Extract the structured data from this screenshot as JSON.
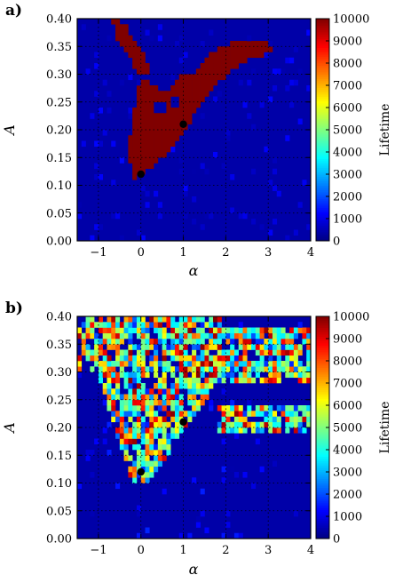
{
  "chart_data": [
    {
      "type": "heatmap",
      "panel_label": "a)",
      "xlabel": "α",
      "ylabel": "A",
      "xlim": [
        -1.5,
        4
      ],
      "ylim": [
        0,
        0.4
      ],
      "x_ticks": [
        "−1",
        "0",
        "1",
        "2",
        "3",
        "4"
      ],
      "x_tick_values": [
        -1,
        0,
        1,
        2,
        3,
        4
      ],
      "y_ticks": [
        "0.00",
        "0.05",
        "0.10",
        "0.15",
        "0.20",
        "0.25",
        "0.30",
        "0.35",
        "0.40"
      ],
      "y_tick_values": [
        0,
        0.05,
        0.1,
        0.15,
        0.2,
        0.25,
        0.3,
        0.35,
        0.4
      ],
      "grid": true,
      "colorbar": {
        "label": "Lifetime",
        "range": [
          0,
          10000
        ],
        "ticks": [
          "0",
          "1000",
          "2000",
          "3000",
          "4000",
          "5000",
          "6000",
          "7000",
          "8000",
          "9000",
          "10000"
        ],
        "tick_values": [
          0,
          1000,
          2000,
          3000,
          4000,
          5000,
          6000,
          7000,
          8000,
          9000,
          10000
        ]
      },
      "background_value": 400,
      "region": {
        "value": 10000,
        "description_points": [
          [
            -0.15,
            0.115
          ],
          [
            0.05,
            0.12
          ],
          [
            0.5,
            0.15
          ],
          [
            0.95,
            0.185
          ],
          [
            1.35,
            0.24
          ],
          [
            1.8,
            0.285
          ],
          [
            2.4,
            0.32
          ],
          [
            3.0,
            0.34
          ],
          [
            3.2,
            0.35
          ],
          [
            2.8,
            0.362
          ],
          [
            2.2,
            0.36
          ],
          [
            1.9,
            0.35
          ],
          [
            1.55,
            0.33
          ],
          [
            1.2,
            0.3
          ],
          [
            0.9,
            0.295
          ],
          [
            0.6,
            0.27
          ],
          [
            0.3,
            0.28
          ],
          [
            -0.05,
            0.305
          ],
          [
            -0.35,
            0.335
          ],
          [
            -0.6,
            0.37
          ],
          [
            -0.7,
            0.4
          ],
          [
            -0.5,
            0.4
          ],
          [
            -0.2,
            0.37
          ],
          [
            0.05,
            0.34
          ],
          [
            0.2,
            0.31
          ],
          [
            -0.05,
            0.28
          ],
          [
            -0.15,
            0.24
          ],
          [
            -0.25,
            0.19
          ],
          [
            -0.3,
            0.15
          ]
        ],
        "holes": [
          [
            [
              0.35,
              0.23
            ],
            [
              0.6,
              0.23
            ],
            [
              0.6,
              0.25
            ],
            [
              0.35,
              0.25
            ]
          ],
          [
            [
              0.7,
              0.245
            ],
            [
              0.9,
              0.245
            ],
            [
              0.9,
              0.265
            ],
            [
              0.7,
              0.265
            ]
          ]
        ]
      },
      "markers": [
        {
          "x": 0,
          "y": 0.12
        },
        {
          "x": 1,
          "y": 0.21
        }
      ]
    },
    {
      "type": "heatmap",
      "panel_label": "b)",
      "xlabel": "α",
      "ylabel": "A",
      "xlim": [
        -1.5,
        4
      ],
      "ylim": [
        0,
        0.4
      ],
      "x_ticks": [
        "−1",
        "0",
        "1",
        "2",
        "3",
        "4"
      ],
      "x_tick_values": [
        -1,
        0,
        1,
        2,
        3,
        4
      ],
      "y_ticks": [
        "0.00",
        "0.05",
        "0.10",
        "0.15",
        "0.20",
        "0.25",
        "0.30",
        "0.35",
        "0.40"
      ],
      "y_tick_values": [
        0,
        0.05,
        0.1,
        0.15,
        0.2,
        0.25,
        0.3,
        0.35,
        0.4
      ],
      "grid": true,
      "colorbar": {
        "label": "Lifetime",
        "range": [
          0,
          10000
        ],
        "ticks": [
          "0",
          "1000",
          "2000",
          "3000",
          "4000",
          "5000",
          "6000",
          "7000",
          "8000",
          "9000",
          "10000"
        ],
        "tick_values": [
          0,
          1000,
          2000,
          3000,
          4000,
          5000,
          6000,
          7000,
          8000,
          9000,
          10000
        ]
      },
      "background_value": 400,
      "scattered_region_note": "Noisy mixture of lifetimes in a wedge from (0, 0.11) widening to both sides above A≈0.15, plus bands at A≈0.19–0.24 and A≈0.29–0.38 for α>1.8",
      "markers": [
        {
          "x": 0,
          "y": 0.12
        },
        {
          "x": 1,
          "y": 0.21
        }
      ]
    }
  ]
}
